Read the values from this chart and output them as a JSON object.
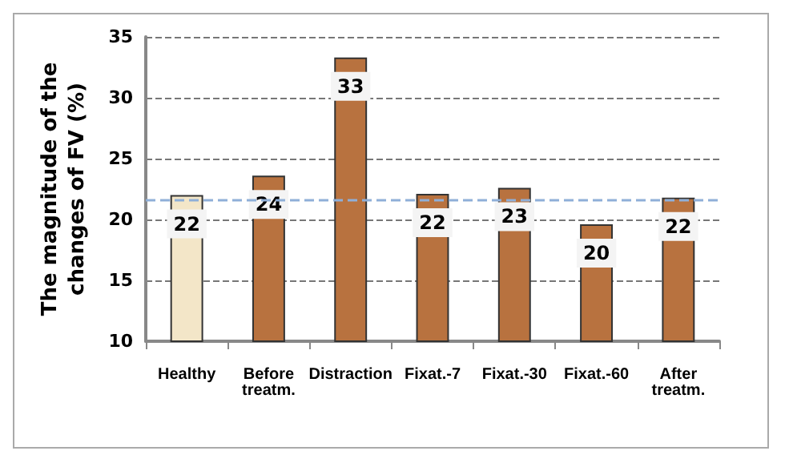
{
  "chart_data": {
    "type": "bar",
    "ylabel": "The magnitude of the\nchanges of FV (%)",
    "categories": [
      "Healthy",
      "Before\ntreatm.",
      "Distraction",
      "Fixat.-7",
      "Fixat.-30",
      "Fixat.-60",
      "After\ntreatm."
    ],
    "values": [
      22.0,
      23.6,
      33.3,
      22.1,
      22.6,
      19.6,
      21.8
    ],
    "value_labels": [
      "22",
      "24",
      "33",
      "22",
      "23",
      "20",
      "22"
    ],
    "colors": [
      "#f3e6c8",
      "#b8723f",
      "#b8723f",
      "#b8723f",
      "#b8723f",
      "#b8723f",
      "#b8723f"
    ],
    "ylim": [
      10,
      35
    ],
    "yticks": [
      10,
      15,
      20,
      25,
      30,
      35
    ],
    "grid": "y",
    "ref_lines": [
      {
        "axis": "y",
        "value": 21.6,
        "color": "#8fafd8",
        "line_style": "dashed"
      }
    ]
  }
}
